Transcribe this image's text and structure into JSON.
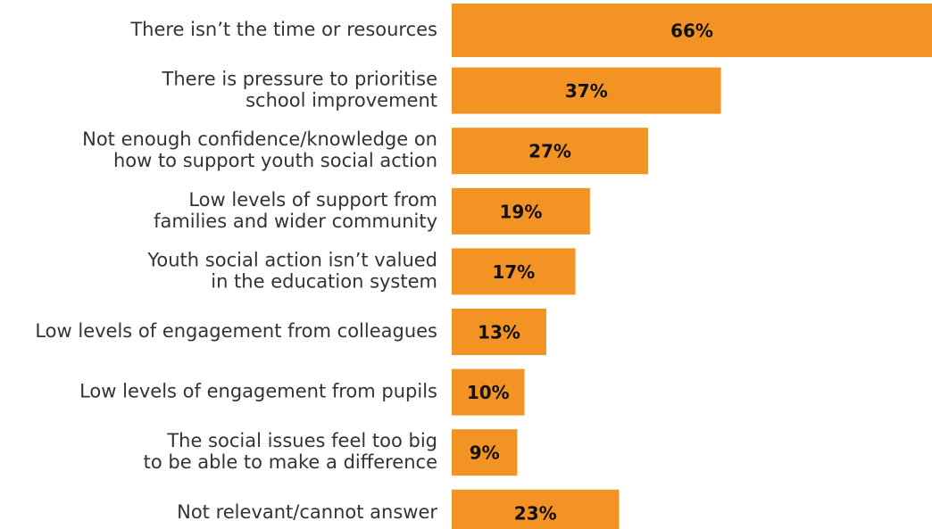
{
  "chart_data": {
    "type": "bar",
    "orientation": "horizontal",
    "categories": [
      [
        "There isn’t the time or resources"
      ],
      [
        "There is pressure to prioritise",
        "school improvement"
      ],
      [
        "Not enough confidence/knowledge on",
        "how to support youth social action"
      ],
      [
        "Low levels of support from",
        "families and wider community"
      ],
      [
        "Youth social action isn’t valued",
        "in the education system"
      ],
      [
        "Low levels of engagement from colleagues"
      ],
      [
        "Low levels of engagement from pupils"
      ],
      [
        "The social issues feel too big",
        "to be able to make a difference"
      ],
      [
        "Not relevant/cannot answer"
      ]
    ],
    "values": [
      66,
      37,
      27,
      19,
      17,
      13,
      10,
      9,
      23
    ],
    "value_labels": [
      "66%",
      "37%",
      "27%",
      "19%",
      "17%",
      "13%",
      "10%",
      "9%",
      "23%"
    ],
    "color": "#f39323"
  }
}
